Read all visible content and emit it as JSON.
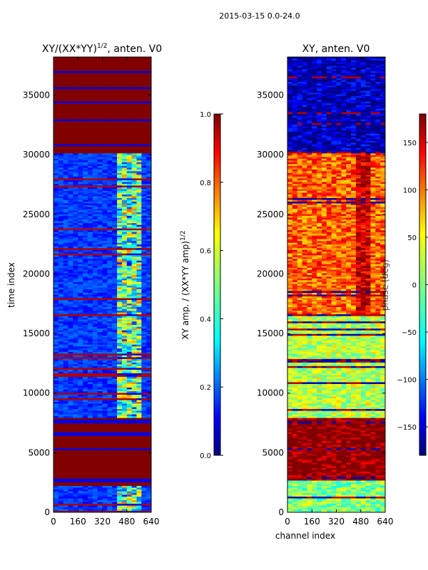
{
  "suptitle": "2015-03-15 0.0-24.0",
  "chart_data": [
    {
      "type": "heatmap",
      "panel": "left",
      "title_main": "XY/(XX*YY)",
      "title_sup": "1/2",
      "title_tail": ", anten. V0",
      "xlabel": "",
      "ylabel": "time index",
      "xlim": [
        0,
        640
      ],
      "ylim": [
        0,
        38200
      ],
      "xticks": [
        0,
        160,
        320,
        480,
        640
      ],
      "yticks": [
        0,
        5000,
        10000,
        15000,
        20000,
        25000,
        30000,
        35000
      ],
      "colormap": "jet",
      "colorbar": {
        "label_main": "XY amp. / (XX*YY amp)",
        "label_sup": "1/2",
        "range": [
          0.0,
          1.0
        ],
        "ticks": [
          "0.0",
          "0.2",
          "0.4",
          "0.6",
          "0.8",
          "1.0"
        ],
        "tick_values": [
          0.0,
          0.2,
          0.4,
          0.6,
          0.8,
          1.0
        ]
      },
      "time_blocks": [
        {
          "from": 0,
          "to": 2200,
          "value": "mixed, mostly low",
          "level": 0.1
        },
        {
          "from": 2200,
          "to": 7900,
          "value": "saturated",
          "level": 1.0
        },
        {
          "from": 7900,
          "to": 30100,
          "value": "low with higher channels 400-550",
          "level": 0.15
        },
        {
          "from": 30100,
          "to": 38200,
          "value": "mostly saturated with low stripes",
          "level": 0.95
        }
      ]
    },
    {
      "type": "heatmap",
      "panel": "right",
      "title_main": "XY, anten. V0",
      "xlabel": "channel index",
      "ylabel": "",
      "xlim": [
        0,
        640
      ],
      "ylim": [
        0,
        38200
      ],
      "xticks": [
        0,
        160,
        320,
        480,
        640
      ],
      "yticks": [
        0,
        5000,
        10000,
        15000,
        20000,
        25000,
        30000,
        35000
      ],
      "colormap": "jet",
      "colorbar": {
        "label_main": "phase (deg)",
        "range": [
          -180,
          180
        ],
        "ticks": [
          "−150",
          "−100",
          "−50",
          "0",
          "50",
          "100",
          "150"
        ],
        "tick_values": [
          -150,
          -100,
          -50,
          0,
          50,
          100,
          150
        ]
      },
      "time_blocks": [
        {
          "from": 0,
          "to": 2600,
          "value": "mixed phase",
          "level": 0.0
        },
        {
          "from": 2600,
          "to": 7900,
          "value": "phase near 180",
          "level": 180
        },
        {
          "from": 7900,
          "to": 16500,
          "value": "phase near 0 to 50",
          "level": 20
        },
        {
          "from": 16500,
          "to": 30100,
          "value": "phase 50 to 150",
          "level": 100
        },
        {
          "from": 30100,
          "to": 38200,
          "value": "phase near -150",
          "level": -160
        }
      ]
    }
  ]
}
